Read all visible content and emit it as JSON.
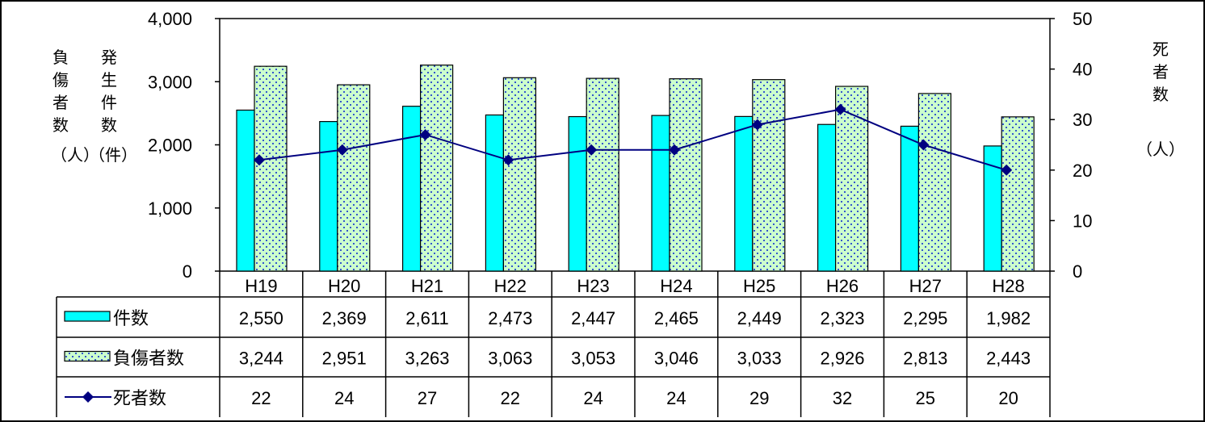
{
  "chart_data": {
    "type": "bar",
    "categories": [
      "H19",
      "H20",
      "H21",
      "H22",
      "H23",
      "H24",
      "H25",
      "H26",
      "H27",
      "H28"
    ],
    "series": [
      {
        "name": "件数",
        "type": "bar",
        "axis": "left",
        "color": "#00FFFF",
        "pattern": "solid",
        "values": [
          2550,
          2369,
          2611,
          2473,
          2447,
          2465,
          2449,
          2323,
          2295,
          1982
        ]
      },
      {
        "name": "負傷者数",
        "type": "bar",
        "axis": "left",
        "color": "#CCFFCC",
        "pattern": "dotted",
        "values": [
          3244,
          2951,
          3263,
          3063,
          3053,
          3046,
          3033,
          2926,
          2813,
          2443
        ]
      },
      {
        "name": "死者数",
        "type": "line",
        "axis": "right",
        "color": "#000080",
        "marker": "diamond",
        "values": [
          22,
          24,
          27,
          22,
          24,
          24,
          29,
          32,
          25,
          20
        ]
      }
    ],
    "table_values": {
      "件数": [
        "2,550",
        "2,369",
        "2,611",
        "2,473",
        "2,447",
        "2,465",
        "2,449",
        "2,323",
        "2,295",
        "1,982"
      ],
      "負傷者数": [
        "3,244",
        "2,951",
        "3,263",
        "3,063",
        "3,053",
        "3,046",
        "3,033",
        "2,926",
        "2,813",
        "2,443"
      ],
      "死者数": [
        "22",
        "24",
        "27",
        "22",
        "24",
        "24",
        "29",
        "32",
        "25",
        "20"
      ]
    },
    "ylim_left": [
      0,
      4000
    ],
    "ylim_right": [
      0,
      50
    ],
    "left_ticks": [
      "0",
      "1,000",
      "2,000",
      "3,000",
      "4,000"
    ],
    "right_ticks": [
      "0",
      "10",
      "20",
      "30",
      "40",
      "50"
    ],
    "ylabel_left_injured": {
      "chars": [
        "負",
        "傷",
        "者",
        "数"
      ],
      "unit": "（人）"
    },
    "ylabel_left_incidents": {
      "chars": [
        "発",
        "生",
        "件",
        "数"
      ],
      "unit": "（件）"
    },
    "ylabel_right": {
      "chars": [
        "死",
        "者",
        "数"
      ],
      "unit": "（人）"
    },
    "grid": false,
    "legend": "data-table"
  }
}
